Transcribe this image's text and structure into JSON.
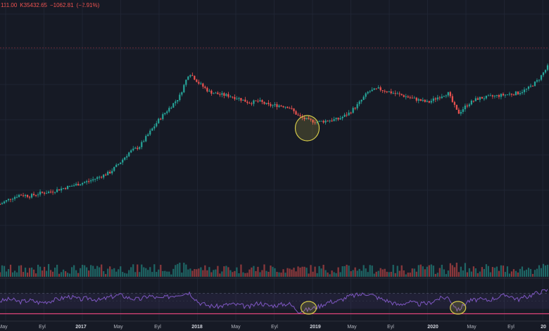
{
  "ohlc": {
    "close": "111.00",
    "change_text": "K35432.65",
    "delta": "−1062.81",
    "pct": "(−2.91%)"
  },
  "colors": {
    "background": "#161a25",
    "up": "#26a69a",
    "down": "#ef5350",
    "rsi_line": "#7e57c2",
    "rsi_band": "rgba(126,87,194,0.10)",
    "rsi_floor": "#e0447a",
    "highlight": "#d4c94a",
    "grid": "#1f2432"
  },
  "chart_data": {
    "type": "candlestick",
    "panes": [
      "price",
      "volume",
      "rsi"
    ],
    "price_series": [
      [
        "2016-05",
        0.0
      ],
      [
        "2016-06",
        0.04
      ],
      [
        "2016-07",
        0.07
      ],
      [
        "2016-08",
        0.06
      ],
      [
        "2016-09",
        0.08
      ],
      [
        "2016-10",
        0.09
      ],
      [
        "2016-11",
        0.11
      ],
      [
        "2016-12",
        0.13
      ],
      [
        "2017-01",
        0.15
      ],
      [
        "2017-02",
        0.17
      ],
      [
        "2017-03",
        0.2
      ],
      [
        "2017-04",
        0.23
      ],
      [
        "2017-05",
        0.3
      ],
      [
        "2017-06",
        0.38
      ],
      [
        "2017-07",
        0.42
      ],
      [
        "2017-08",
        0.52
      ],
      [
        "2017-09",
        0.62
      ],
      [
        "2017-10",
        0.7
      ],
      [
        "2017-11",
        0.78
      ],
      [
        "2017-12",
        0.96
      ],
      [
        "2018-01",
        0.88
      ],
      [
        "2018-02",
        0.82
      ],
      [
        "2018-03",
        0.8
      ],
      [
        "2018-04",
        0.79
      ],
      [
        "2018-05",
        0.77
      ],
      [
        "2018-06",
        0.74
      ],
      [
        "2018-07",
        0.75
      ],
      [
        "2018-08",
        0.72
      ],
      [
        "2018-09",
        0.72
      ],
      [
        "2018-10",
        0.71
      ],
      [
        "2018-11",
        0.64
      ],
      [
        "2018-12",
        0.61
      ],
      [
        "2019-01",
        0.6
      ],
      [
        "2019-02",
        0.61
      ],
      [
        "2019-03",
        0.62
      ],
      [
        "2019-04",
        0.66
      ],
      [
        "2019-05",
        0.73
      ],
      [
        "2019-06",
        0.82
      ],
      [
        "2019-07",
        0.84
      ],
      [
        "2019-08",
        0.82
      ],
      [
        "2019-09",
        0.8
      ],
      [
        "2019-10",
        0.78
      ],
      [
        "2019-11",
        0.76
      ],
      [
        "2019-12",
        0.74
      ],
      [
        "2020-01",
        0.78
      ],
      [
        "2020-02",
        0.81
      ],
      [
        "2020-03",
        0.66
      ],
      [
        "2020-04",
        0.73
      ],
      [
        "2020-05",
        0.77
      ],
      [
        "2020-06",
        0.78
      ],
      [
        "2020-07",
        0.79
      ],
      [
        "2020-08",
        0.8
      ],
      [
        "2020-09",
        0.81
      ],
      [
        "2020-10",
        0.84
      ],
      [
        "2020-11",
        0.9
      ],
      [
        "2020-12",
        1.0
      ]
    ],
    "rsi_series": [
      [
        "2016-05",
        50
      ],
      [
        "2016-06",
        55
      ],
      [
        "2016-07",
        48
      ],
      [
        "2016-08",
        52
      ],
      [
        "2016-09",
        46
      ],
      [
        "2016-10",
        50
      ],
      [
        "2016-11",
        56
      ],
      [
        "2016-12",
        62
      ],
      [
        "2017-01",
        54
      ],
      [
        "2017-02",
        58
      ],
      [
        "2017-03",
        52
      ],
      [
        "2017-04",
        60
      ],
      [
        "2017-05",
        66
      ],
      [
        "2017-06",
        58
      ],
      [
        "2017-07",
        54
      ],
      [
        "2017-08",
        64
      ],
      [
        "2017-09",
        56
      ],
      [
        "2017-10",
        62
      ],
      [
        "2017-11",
        68
      ],
      [
        "2017-12",
        72
      ],
      [
        "2018-01",
        46
      ],
      [
        "2018-02",
        38
      ],
      [
        "2018-03",
        36
      ],
      [
        "2018-04",
        42
      ],
      [
        "2018-05",
        40
      ],
      [
        "2018-06",
        34
      ],
      [
        "2018-07",
        46
      ],
      [
        "2018-08",
        38
      ],
      [
        "2018-09",
        40
      ],
      [
        "2018-10",
        44
      ],
      [
        "2018-11",
        24
      ],
      [
        "2018-12",
        28
      ],
      [
        "2019-01",
        36
      ],
      [
        "2019-02",
        48
      ],
      [
        "2019-03",
        50
      ],
      [
        "2019-04",
        62
      ],
      [
        "2019-05",
        66
      ],
      [
        "2019-06",
        70
      ],
      [
        "2019-07",
        58
      ],
      [
        "2019-08",
        50
      ],
      [
        "2019-09",
        40
      ],
      [
        "2019-10",
        48
      ],
      [
        "2019-11",
        42
      ],
      [
        "2019-12",
        44
      ],
      [
        "2020-01",
        56
      ],
      [
        "2020-02",
        60
      ],
      [
        "2020-03",
        26
      ],
      [
        "2020-04",
        50
      ],
      [
        "2020-05",
        54
      ],
      [
        "2020-06",
        52
      ],
      [
        "2020-07",
        60
      ],
      [
        "2020-08",
        66
      ],
      [
        "2020-09",
        54
      ],
      [
        "2020-10",
        62
      ],
      [
        "2020-11",
        72
      ],
      [
        "2020-12",
        78
      ]
    ],
    "rsi_levels": [
      70,
      30
    ],
    "highlights": [
      {
        "pane": "price",
        "center": "2018-12"
      },
      {
        "pane": "rsi",
        "center": "2018-12"
      },
      {
        "pane": "rsi",
        "center": "2020-03"
      }
    ],
    "x_ticks": [
      "May",
      "Eyl",
      "2017",
      "May",
      "Eyl",
      "2018",
      "May",
      "Eyl",
      "2019",
      "May",
      "Eyl",
      "2020",
      "May",
      "Eyl",
      "20"
    ],
    "x_ticks_bold": [
      "2017",
      "2018",
      "2019",
      "2020",
      "20"
    ],
    "grid": true,
    "xlabel": "",
    "ylabel": ""
  }
}
